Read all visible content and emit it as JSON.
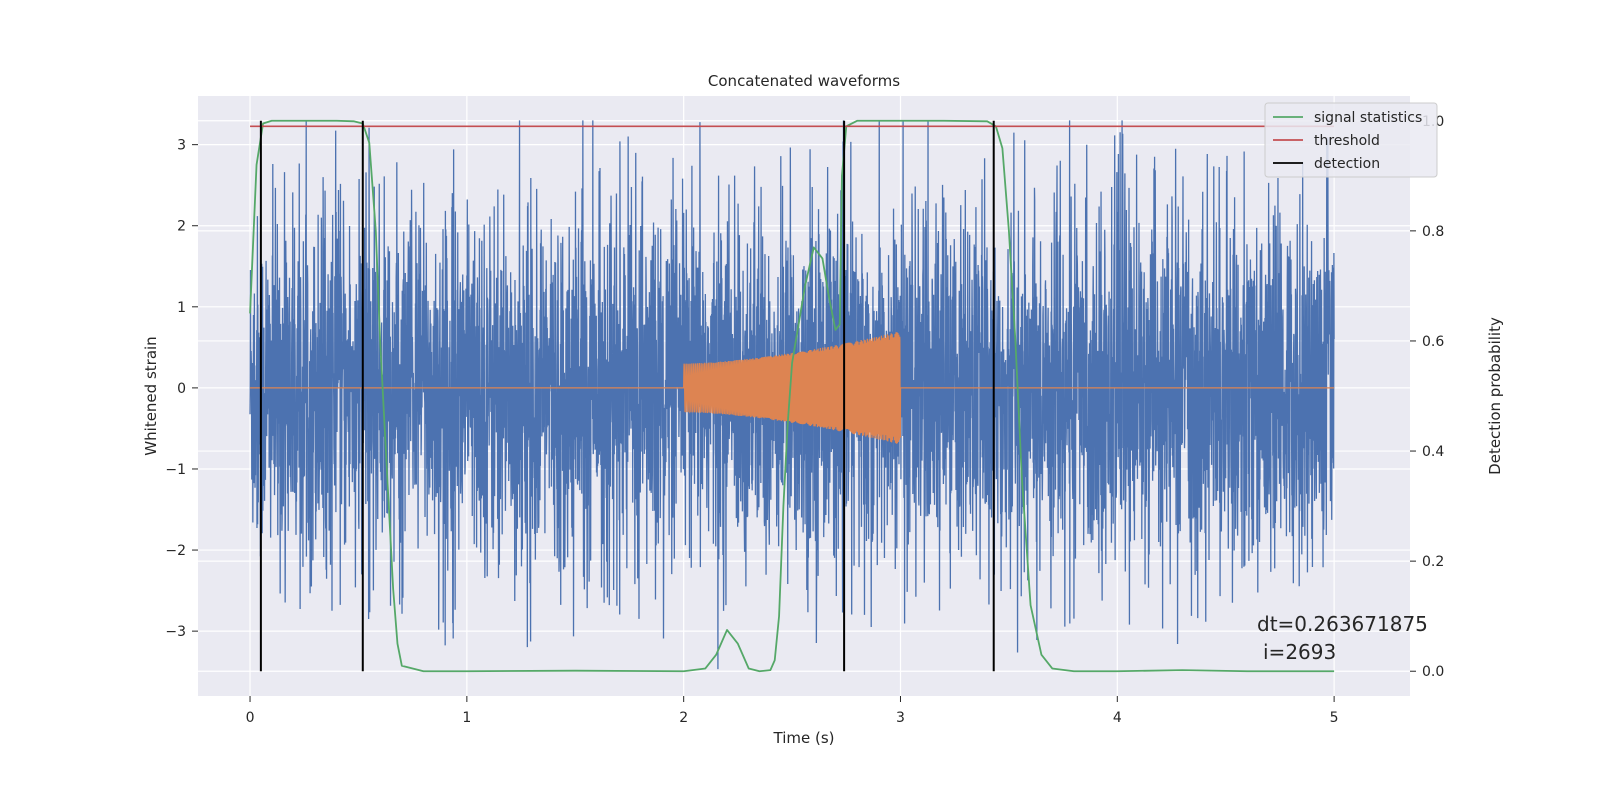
{
  "chart_data": {
    "type": "line",
    "title": "Concatenated waveforms",
    "xlabel": "Time (s)",
    "ylabel": "Whitened strain",
    "y2label": "Detection probability",
    "xlim": [
      -0.24,
      5.35
    ],
    "ylim": [
      -3.8,
      3.6
    ],
    "y2lim": [
      -0.045,
      1.045
    ],
    "x_ticks": [
      0,
      1,
      2,
      3,
      4,
      5
    ],
    "y_ticks": [
      -3,
      -2,
      -1,
      0,
      1,
      2,
      3
    ],
    "y2_ticks": [
      0.0,
      0.2,
      0.4,
      0.6,
      0.8,
      1.0
    ],
    "y2_tick_labels": [
      "0.0",
      "0.2",
      "0.4",
      "0.6",
      "0.8",
      "1.0"
    ],
    "grid": true,
    "legend_position": "top-right",
    "colors": {
      "background": "#eaeaf2",
      "strain": "#4c72b0",
      "template": "#dd8452",
      "signal_statistics": "#55a868",
      "threshold": "#c44e52",
      "detection": "#000000",
      "grid": "#ffffff"
    },
    "series": [
      {
        "name": "",
        "axis": "left",
        "role": "whitened strain noise",
        "x_range": [
          0,
          5
        ],
        "envelope_typical": 1.9,
        "peak_max": 3.3,
        "peak_min": -3.5
      },
      {
        "name": "",
        "axis": "left",
        "role": "injected chirp",
        "x": [
          0,
          2,
          2,
          2.5,
          3,
          3,
          5
        ],
        "amplitude": [
          0,
          0,
          0.3,
          0.45,
          0.7,
          0,
          0
        ]
      },
      {
        "name": "signal statistics",
        "axis": "right",
        "x": [
          0,
          0.03,
          0.06,
          0.1,
          0.2,
          0.3,
          0.4,
          0.48,
          0.52,
          0.55,
          0.58,
          0.6,
          0.62,
          0.64,
          0.66,
          0.68,
          0.7,
          0.8,
          1.0,
          1.5,
          2.0,
          2.1,
          2.15,
          2.2,
          2.25,
          2.3,
          2.35,
          2.4,
          2.42,
          2.44,
          2.46,
          2.48,
          2.5,
          2.53,
          2.56,
          2.6,
          2.64,
          2.67,
          2.7,
          2.72,
          2.73,
          2.75,
          2.8,
          3.0,
          3.2,
          3.4,
          3.44,
          3.47,
          3.5,
          3.53,
          3.56,
          3.6,
          3.65,
          3.7,
          3.8,
          4.0,
          4.3,
          4.6,
          5.0
        ],
        "values": [
          0.65,
          0.92,
          0.995,
          1.0,
          1.0,
          1.0,
          1.0,
          0.999,
          0.995,
          0.96,
          0.8,
          0.6,
          0.45,
          0.3,
          0.15,
          0.05,
          0.01,
          0.0,
          0.0,
          0.001,
          0.0,
          0.005,
          0.03,
          0.075,
          0.05,
          0.005,
          0.0,
          0.002,
          0.02,
          0.1,
          0.3,
          0.45,
          0.56,
          0.63,
          0.7,
          0.77,
          0.75,
          0.68,
          0.62,
          0.63,
          0.9,
          0.99,
          1.0,
          1.0,
          1.0,
          0.999,
          0.99,
          0.95,
          0.8,
          0.6,
          0.35,
          0.12,
          0.03,
          0.005,
          0.0,
          0.0,
          0.002,
          0.0,
          0.0
        ]
      },
      {
        "name": "threshold",
        "axis": "right",
        "x": [
          0,
          5
        ],
        "values": [
          0.99,
          0.99
        ]
      },
      {
        "name": "detection",
        "axis": "right",
        "x": [
          0.05,
          0.52,
          2.74,
          3.43
        ],
        "values": [
          1.0,
          1.0,
          1.0,
          1.0
        ]
      }
    ],
    "annotation": [
      "dt=0.263671875",
      "i=2693"
    ]
  }
}
